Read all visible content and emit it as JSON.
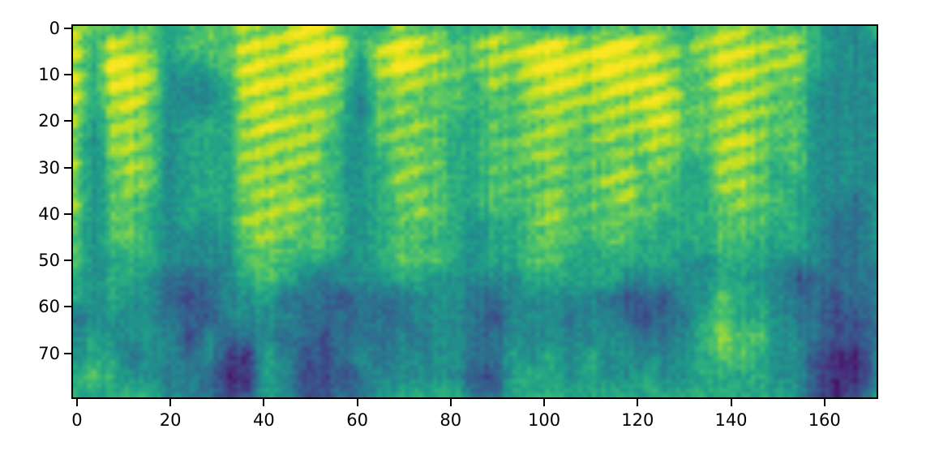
{
  "figure": {
    "background": "#ffffff",
    "spine_color": "#000000",
    "tick_color": "#000000",
    "label_color": "#000000"
  },
  "chart_data": {
    "type": "heatmap",
    "subtype": "mel-spectrogram",
    "title": "",
    "xlabel": "",
    "ylabel": "",
    "x_tick_labels": [
      "0",
      "20",
      "40",
      "60",
      "80",
      "100",
      "120",
      "140",
      "160"
    ],
    "x_tick_values": [
      0,
      20,
      40,
      60,
      80,
      100,
      120,
      140,
      160
    ],
    "y_tick_labels": [
      "0",
      "10",
      "20",
      "30",
      "40",
      "50",
      "60",
      "70"
    ],
    "y_tick_values": [
      0,
      10,
      20,
      30,
      40,
      50,
      60,
      70
    ],
    "n_frames": 172,
    "n_bins": 80,
    "x_range": [
      -0.5,
      171.5
    ],
    "y_range": [
      79.5,
      -0.5
    ],
    "origin": "upper",
    "grid_on": false,
    "legend": null,
    "colormap": "viridis",
    "colormap_stops": [
      "#440154",
      "#482878",
      "#3e4a89",
      "#31688e",
      "#26828e",
      "#1f9e89",
      "#35b779",
      "#6ece58",
      "#b5de2b",
      "#dfe318",
      "#fde725"
    ],
    "value_scale": "digits 0 (lowest energy, dark purple) to 9 (highest energy, yellow)",
    "grid_note": "coarse 43x20 intensity grid; each column ~4 time frames (left to right, frames 0-171), each digit ~4 mel bins (top row = bin 0 at top of image, last = bin ~79)",
    "grid_columns": [
      "78787767676665534455",
      "65555444444444445565",
      "68987776666655544555",
      "67888777766655444345",
      "66776666655554444445",
      "55444444444443334434",
      "66544555555443232344",
      "66544555554443324433",
      "66655555555444443212",
      "78887777767665443112",
      "78888877777766544555",
      "78787877777665343444",
      "89887777676654333222",
      "89887766666653332222",
      "68766555555544233323",
      "55443444444444333433",
      "57766665555554333344",
      "79977676766665334445",
      "68876767676665443445",
      "67766666666564444445",
      "56666555555554444445",
      "56655555554444333323",
      "68776666665554323323",
      "67766666665554444555",
      "58877676666665444455",
      "59987777677665444555",
      "58887766666655434445",
      "58877666666555444555",
      "69987776766655344445",
      "69887767776654234445",
      "68888776666554323455",
      "67788877665554233445",
      "56666665555544434445",
      "67666665555544455555",
      "78887777766655667655",
      "78878787776655556655",
      "67777676666554556555",
      "67766665565544444445",
      "67766666555542334444",
      "55544444444443333222",
      "44444444443333222111",
      "44444444433333322112",
      "54444444444443333334"
    ]
  }
}
